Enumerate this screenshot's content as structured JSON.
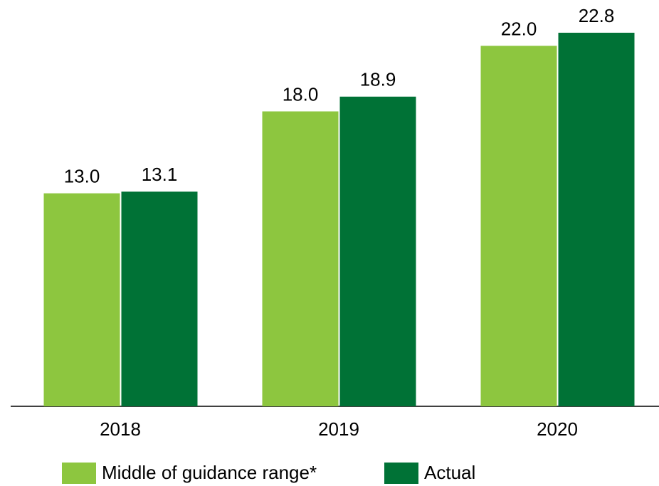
{
  "chart_data": {
    "type": "bar",
    "categories": [
      "2018",
      "2019",
      "2020"
    ],
    "series": [
      {
        "name": "Middle of guidance range*",
        "color": "#8dc63f",
        "values": [
          13.0,
          18.0,
          22.0
        ],
        "value_labels": [
          "13.0",
          "18.0",
          "22.0"
        ]
      },
      {
        "name": "Actual",
        "color": "#007236",
        "values": [
          13.1,
          18.9,
          22.8
        ],
        "value_labels": [
          "13.1",
          "18.9",
          "22.8"
        ]
      }
    ],
    "legend": "bottom"
  }
}
